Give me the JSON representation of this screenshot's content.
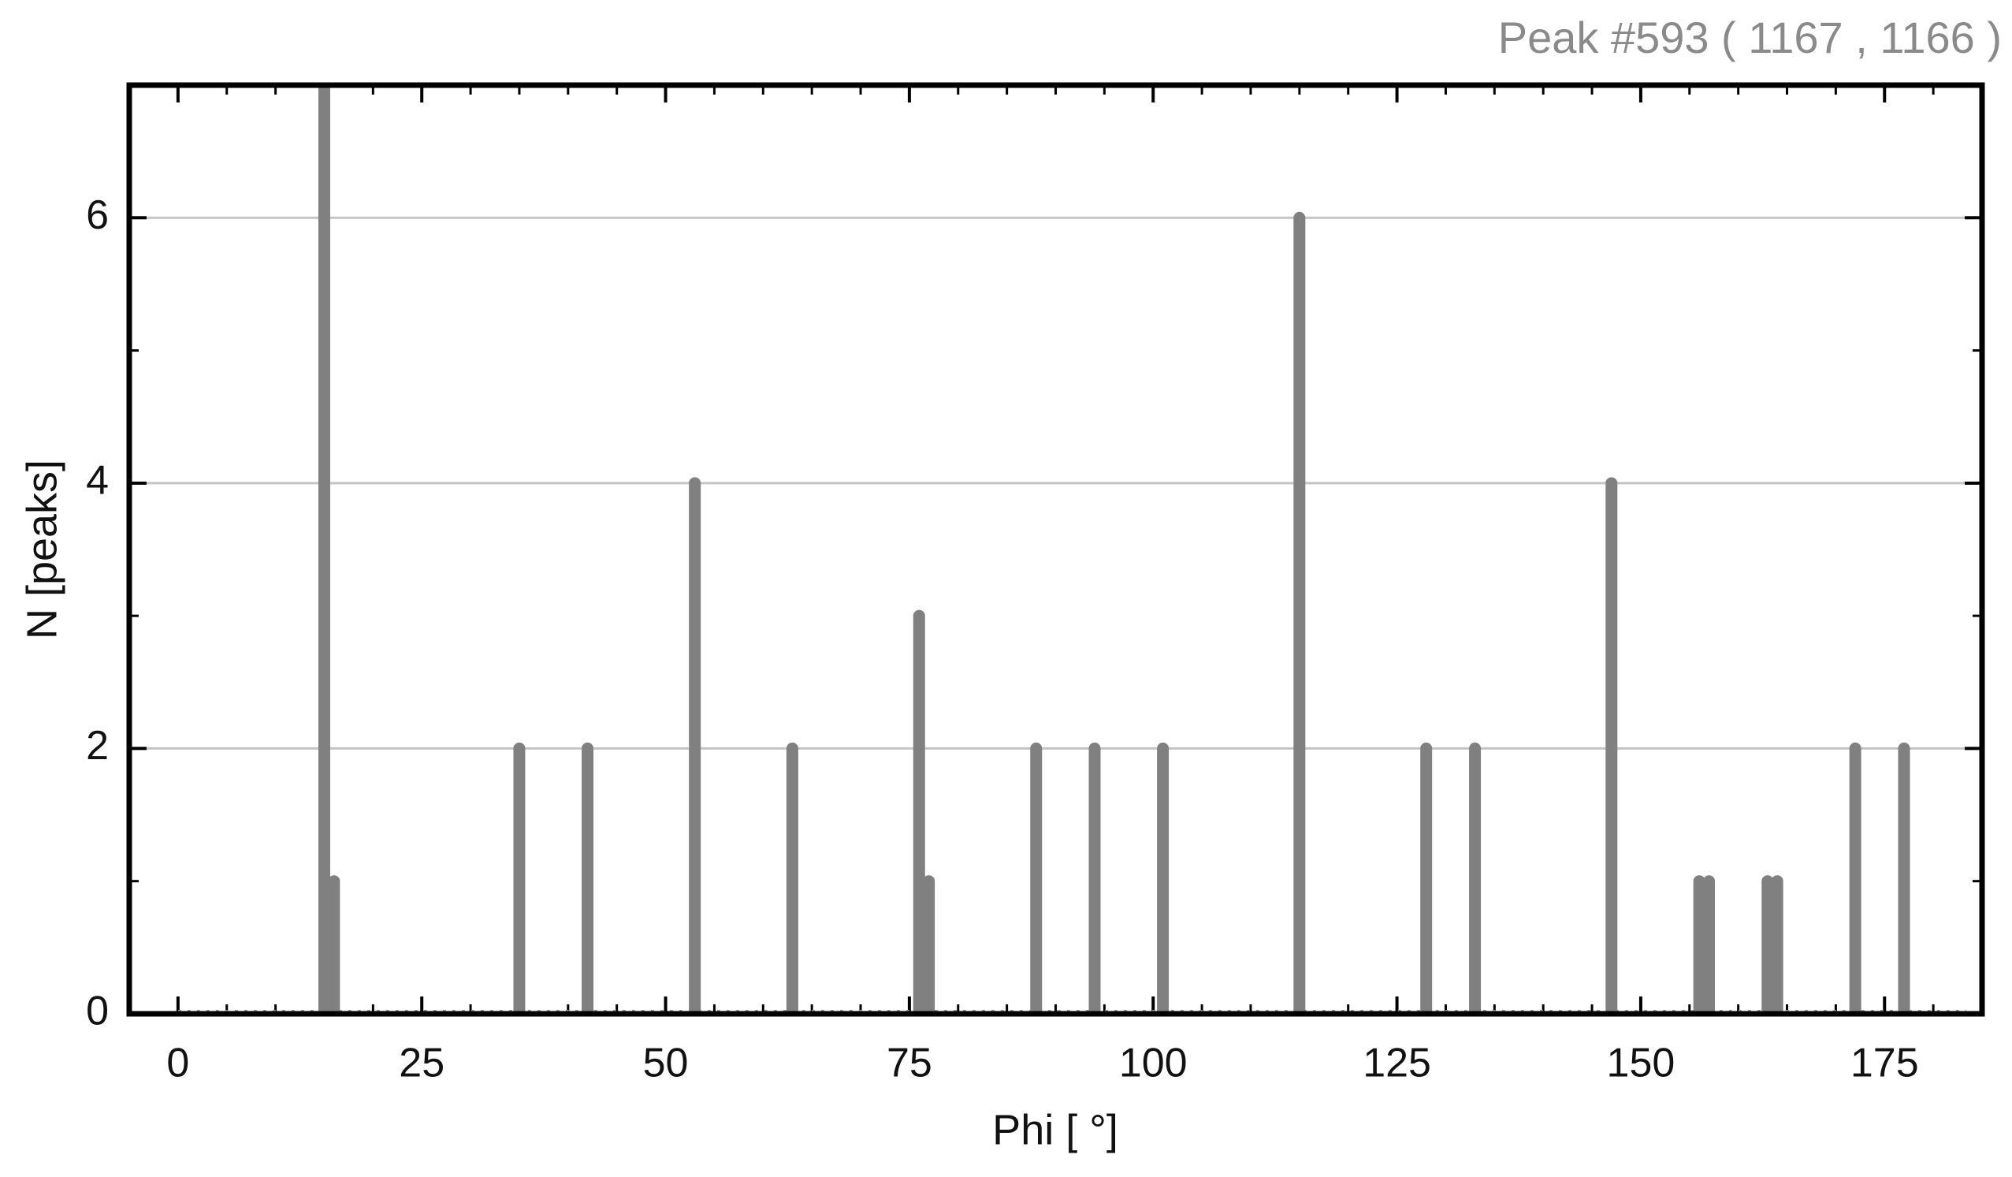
{
  "chart_data": {
    "type": "stem",
    "title": "Peak #593  ( 1167 , 1166 )",
    "x_label": "Phi [ °]",
    "y_label": "N [peaks]",
    "x": [
      15,
      16,
      35,
      42,
      53,
      63,
      76,
      77,
      88,
      94,
      101,
      115,
      128,
      133,
      147,
      156,
      157,
      163,
      164,
      172,
      177
    ],
    "values": [
      7,
      1,
      2,
      2,
      4,
      2,
      3,
      1,
      2,
      2,
      2,
      6,
      2,
      2,
      4,
      1,
      1,
      1,
      1,
      2,
      2
    ],
    "color": "#808080",
    "xlim": [
      -5,
      185
    ],
    "ylim": [
      0,
      7
    ],
    "xticks": [
      0,
      25,
      50,
      75,
      100,
      125,
      150,
      175
    ],
    "yticks": [
      0,
      2,
      4,
      6
    ],
    "grid": true
  }
}
